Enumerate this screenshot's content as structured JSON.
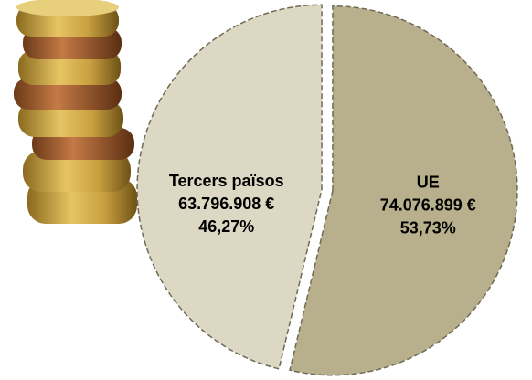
{
  "chart_data": {
    "type": "pie",
    "categories": [
      "Tercers països",
      "UE"
    ],
    "values": [
      46.27,
      53.73
    ],
    "value_labels": [
      "46,27%",
      "53,73%"
    ],
    "amounts": [
      63796908,
      74076899
    ],
    "amount_labels": [
      "63.796.908 €",
      "74.076.899 €"
    ],
    "colors": [
      "#dcd8c4",
      "#b8b08d"
    ],
    "start": "top",
    "direction": "counterclockwise"
  }
}
